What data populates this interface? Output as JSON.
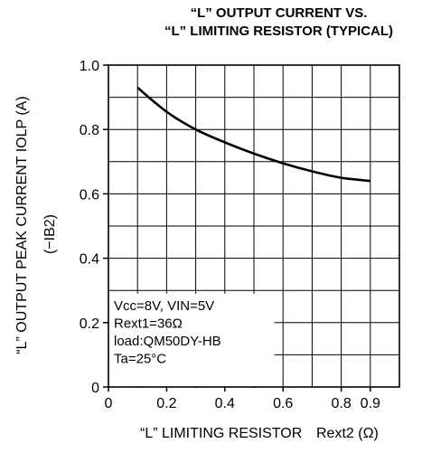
{
  "chart_data": {
    "type": "line",
    "title": [
      "“L” OUTPUT CURRENT VS.",
      "“L” LIMITING RESISTOR (TYPICAL)"
    ],
    "xlabel": "“L” LIMITING RESISTOR",
    "xlabel_symbol": "Rext2 (Ω)",
    "ylabel": "“L” OUTPUT PEAK CURRENT    IOLP (A)",
    "ylabel_sub": "(−IB2)",
    "xlim": [
      0,
      1.0
    ],
    "ylim": [
      0,
      1.0
    ],
    "x_ticks": [
      {
        "v": 0,
        "label": "0"
      },
      {
        "v": 0.2,
        "label": "0.2"
      },
      {
        "v": 0.4,
        "label": "0.4"
      },
      {
        "v": 0.6,
        "label": "0.6"
      },
      {
        "v": 0.8,
        "label": "0.8"
      },
      {
        "v": 0.9,
        "label": "0.9"
      }
    ],
    "y_ticks": [
      {
        "v": 0,
        "label": "0"
      },
      {
        "v": 0.2,
        "label": "0.2"
      },
      {
        "v": 0.4,
        "label": "0.4"
      },
      {
        "v": 0.6,
        "label": "0.6"
      },
      {
        "v": 0.8,
        "label": "0.8"
      },
      {
        "v": 1.0,
        "label": "1.0"
      }
    ],
    "grid": true,
    "x_grid_step": 0.1,
    "y_grid_step": 0.1,
    "series": [
      {
        "x": [
          0.1,
          0.2,
          0.3,
          0.4,
          0.5,
          0.6,
          0.7,
          0.8,
          0.9
        ],
        "y": [
          0.93,
          0.855,
          0.8,
          0.76,
          0.725,
          0.695,
          0.67,
          0.65,
          0.64
        ]
      }
    ],
    "annotations": [
      "Vcc=8V, VIN=5V",
      "Rext1=36Ω",
      "load:QM50DY-HB",
      "Ta=25°C"
    ]
  }
}
